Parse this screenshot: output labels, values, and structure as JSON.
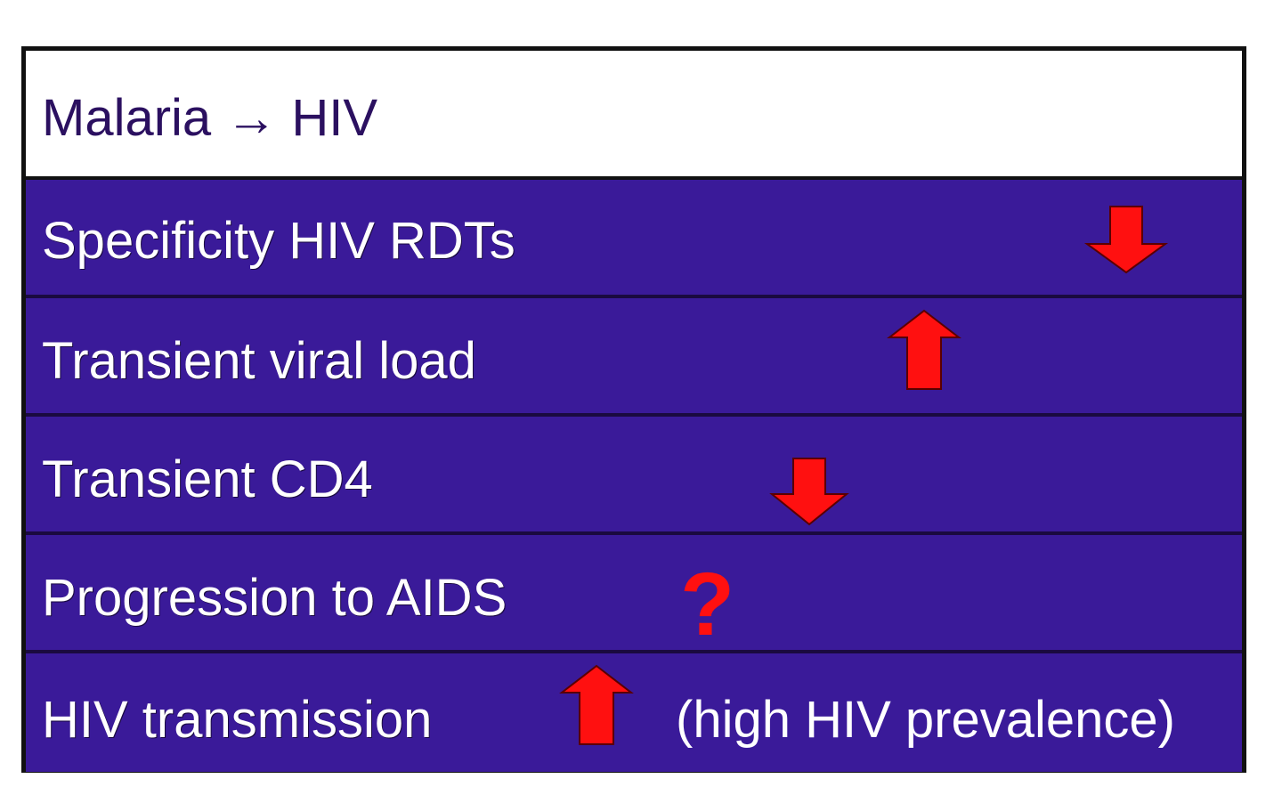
{
  "header": {
    "title": "Malaria → HIV"
  },
  "rows": [
    {
      "label": "Specificity HIV RDTs",
      "effect": "down-arrow-icon"
    },
    {
      "label": "Transient viral load",
      "effect": "up-arrow-icon"
    },
    {
      "label": "Transient CD4",
      "effect": "down-arrow-icon"
    },
    {
      "label": "Progression to AIDS",
      "effect": "?"
    },
    {
      "label": "HIV transmission",
      "effect": "up-arrow-icon",
      "note": "(high HIV prevalence)"
    }
  ],
  "colors": {
    "row_background": "#3a1a99",
    "arrow": "#ff1010",
    "header_text": "#2b1060",
    "row_text": "#ffffff"
  }
}
